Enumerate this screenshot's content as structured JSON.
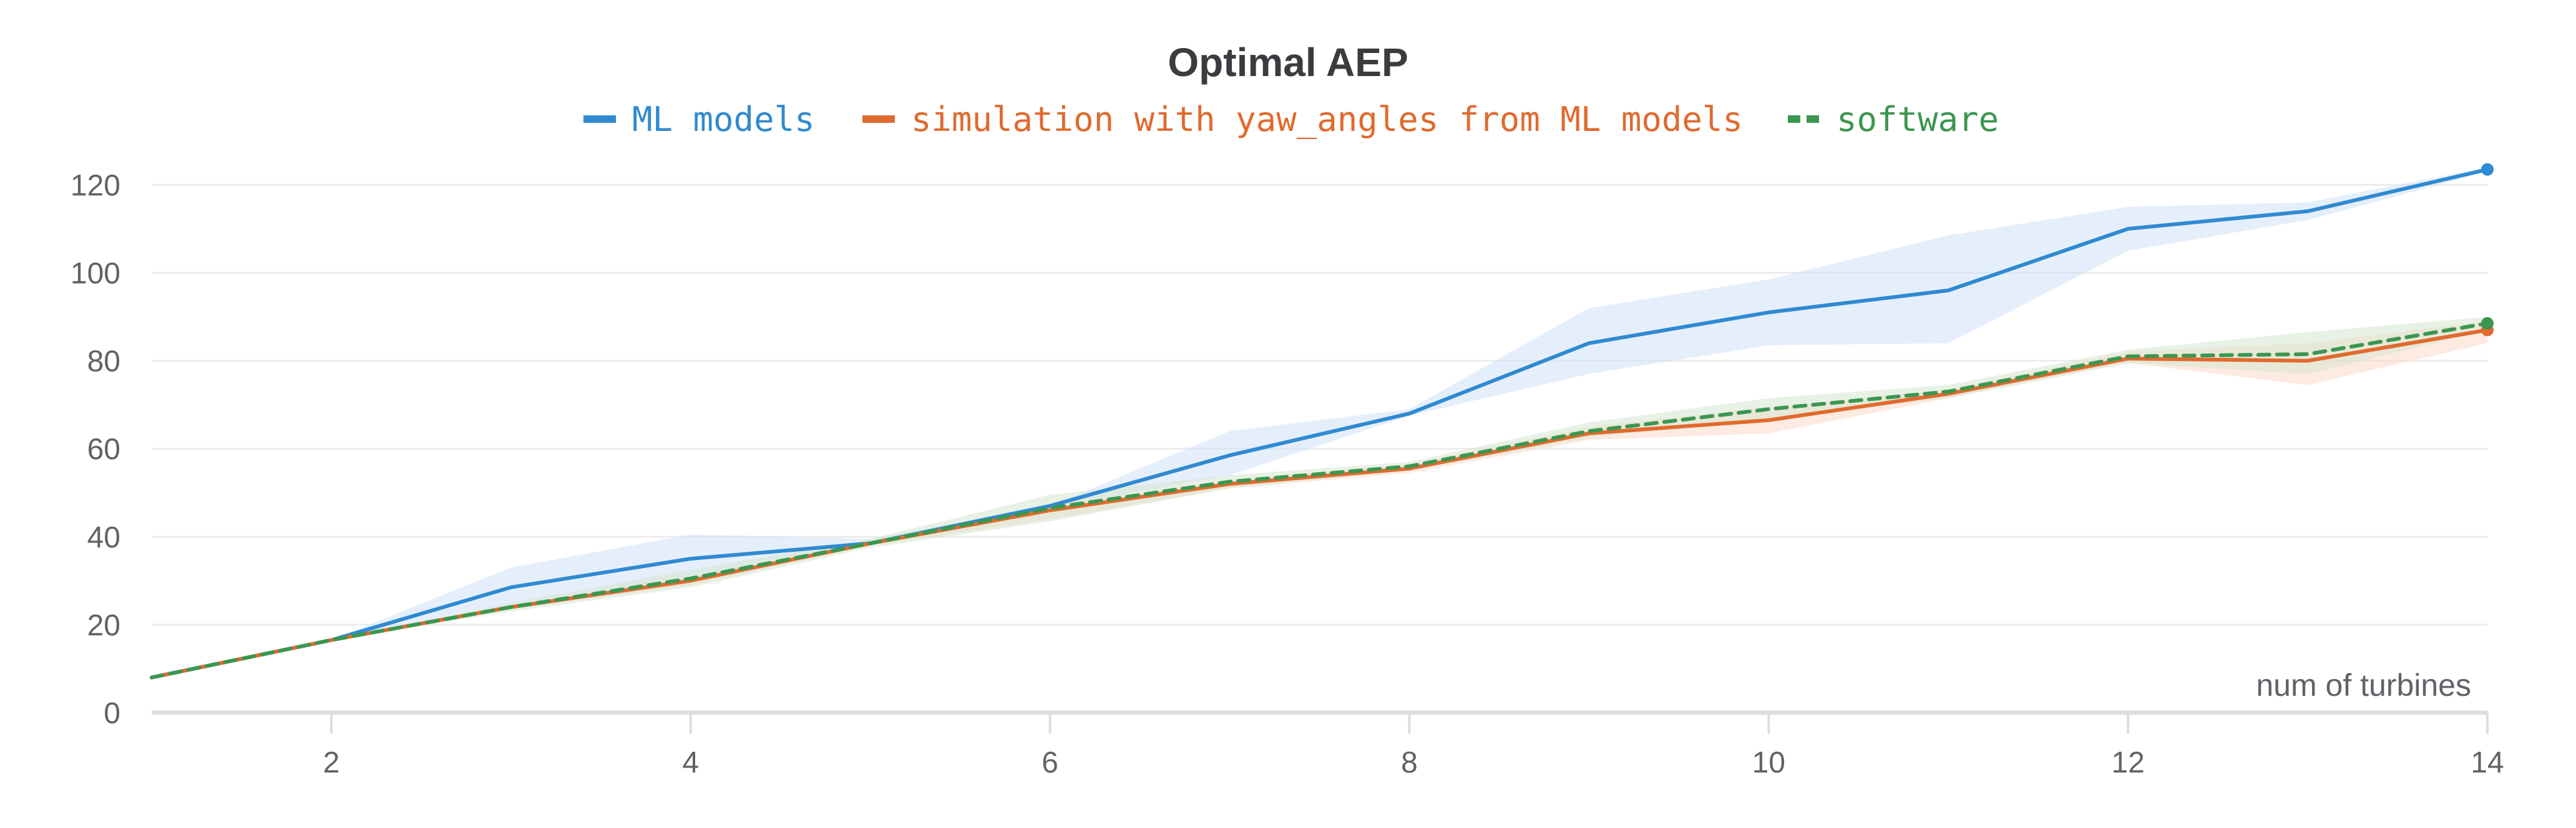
{
  "chart_data": {
    "type": "line",
    "title": "Optimal AEP",
    "xlabel": "num of turbines",
    "ylabel": "",
    "xlim": [
      1,
      14
    ],
    "ylim": [
      0,
      128
    ],
    "x_ticks": [
      2,
      4,
      6,
      8,
      10,
      12,
      14
    ],
    "y_ticks": [
      0,
      20,
      40,
      60,
      80,
      100,
      120
    ],
    "grid": true,
    "legend_position": "top-center",
    "x": [
      1,
      2,
      3,
      4,
      5,
      6,
      7,
      8,
      9,
      10,
      11,
      12,
      13,
      14
    ],
    "series": [
      {
        "name": "ML models",
        "color": "#2f8ad1",
        "band_color": "#cfe2f7",
        "line_style": "solid",
        "values": [
          8,
          16.5,
          28.5,
          35,
          38.5,
          47,
          58.5,
          68,
          84,
          91,
          96,
          110,
          114,
          123.5
        ],
        "band_upper": [
          8,
          16.5,
          33,
          40.5,
          39.5,
          47,
          64,
          69,
          92,
          98.5,
          108.5,
          115,
          116,
          124
        ],
        "band_lower": [
          8,
          16.5,
          24,
          30.5,
          38,
          46.5,
          54,
          67.5,
          77,
          83.5,
          84,
          105,
          112,
          123
        ]
      },
      {
        "name": "simulation with yaw_angles from ML models",
        "color": "#e06a2e",
        "band_color": "#fbd9c7",
        "line_style": "solid",
        "values": [
          8,
          16.5,
          24,
          30,
          38.5,
          46,
          52,
          55.5,
          63.5,
          66.5,
          72.5,
          80.5,
          80,
          87
        ],
        "band_upper": [
          8,
          16.5,
          24.5,
          31,
          39,
          47,
          53,
          56.5,
          65,
          69.5,
          73.5,
          82,
          84,
          89
        ],
        "band_lower": [
          8,
          16.5,
          23.5,
          29,
          38,
          44,
          51,
          54.5,
          62,
          63.5,
          71.5,
          79.5,
          74.5,
          84
        ]
      },
      {
        "name": "software",
        "color": "#3b9650",
        "band_color": "#d5e6cf",
        "line_style": "dashed",
        "values": [
          8,
          16.5,
          24,
          30.5,
          38.5,
          46.5,
          52.5,
          56,
          64,
          69,
          73,
          81,
          81.5,
          88.5
        ],
        "band_upper": [
          8,
          16.5,
          25,
          32.5,
          39.5,
          49.5,
          54,
          57,
          66,
          71.5,
          74.5,
          82.5,
          86.5,
          90
        ],
        "band_lower": [
          8,
          16.5,
          23,
          28.5,
          37.5,
          43.5,
          51,
          55,
          62.5,
          67,
          71.5,
          79.5,
          77,
          87
        ]
      }
    ]
  }
}
